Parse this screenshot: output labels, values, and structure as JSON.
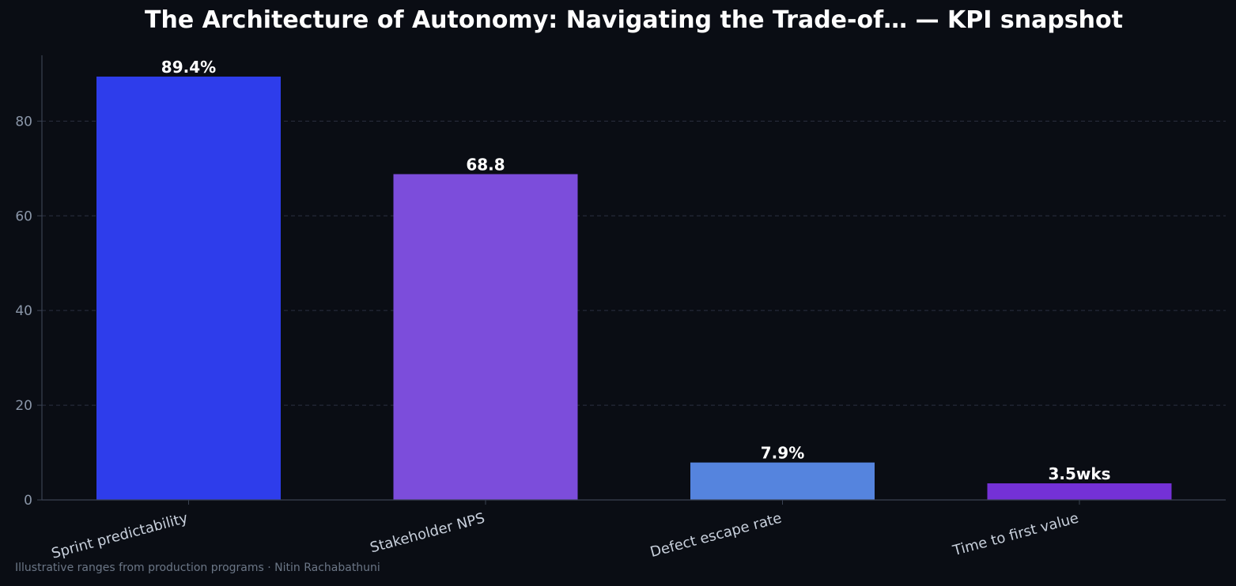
{
  "chart_data": {
    "type": "bar",
    "title": "The Architecture of Autonomy: Navigating the Trade-of… — KPI snapshot",
    "xlabel": "",
    "ylabel": "",
    "categories": [
      "Sprint predictability",
      "Stakeholder NPS",
      "Defect escape rate",
      "Time to first value"
    ],
    "values": [
      89.4,
      68.8,
      7.9,
      3.5
    ],
    "data_labels": [
      "89.4%",
      "68.8",
      "7.9%",
      "3.5wks"
    ],
    "colors": [
      "#2e3deb",
      "#7c4ddb",
      "#5584de",
      "#7431d6"
    ],
    "ylim": [
      0,
      93.9
    ],
    "yticks": [
      0,
      20,
      40,
      60,
      80
    ],
    "grid": true,
    "grid_axis": "y",
    "legend": "none",
    "background": "#0a0d14"
  },
  "footnote": "Illustrative ranges from production programs · Nitin Rachabathuni"
}
